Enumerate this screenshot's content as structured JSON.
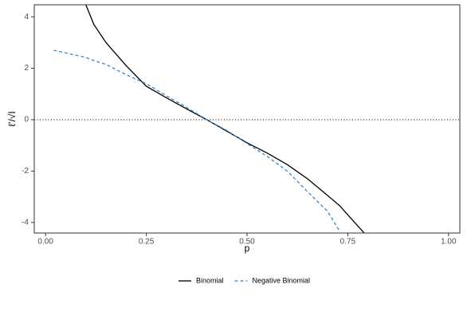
{
  "chart_data": {
    "type": "line",
    "x_label": "p",
    "y_label": "ℓ'/√I",
    "x": [
      0.02,
      0.05,
      0.1,
      0.12,
      0.15,
      0.2,
      0.25,
      0.3,
      0.35,
      0.4,
      0.45,
      0.5,
      0.55,
      0.6,
      0.65,
      0.7,
      0.73,
      0.75,
      0.79
    ],
    "series": [
      {
        "name": "Binomial",
        "color": "#000000",
        "dash": "solid",
        "values": [
          null,
          null,
          4.47,
          3.7,
          3.0,
          2.1,
          1.3,
          0.85,
          0.42,
          0,
          -0.45,
          -0.9,
          -1.3,
          -1.75,
          -2.3,
          -2.95,
          -3.35,
          -3.7,
          -4.4
        ]
      },
      {
        "name": "Negative Binomial",
        "color": "#3a86c8",
        "dash": "dashed",
        "values": [
          2.7,
          2.6,
          2.42,
          2.3,
          2.15,
          1.75,
          1.4,
          0.93,
          0.48,
          0,
          -0.42,
          -0.93,
          -1.43,
          -2.0,
          -2.8,
          -3.57,
          -4.35,
          null,
          null
        ]
      }
    ],
    "xlim": [
      -0.028,
      1.028
    ],
    "ylim": [
      -4.41,
      4.47
    ],
    "xticks": [
      {
        "value": 0,
        "label": "0.00"
      },
      {
        "value": 0.25,
        "label": "0.25"
      },
      {
        "value": 0.5,
        "label": "0.50"
      },
      {
        "value": 0.75,
        "label": "0.75"
      },
      {
        "value": 1,
        "label": "1.00"
      }
    ],
    "yticks": [
      -4,
      -2,
      0,
      2,
      4
    ],
    "hline": 0,
    "legend": "bottom"
  }
}
